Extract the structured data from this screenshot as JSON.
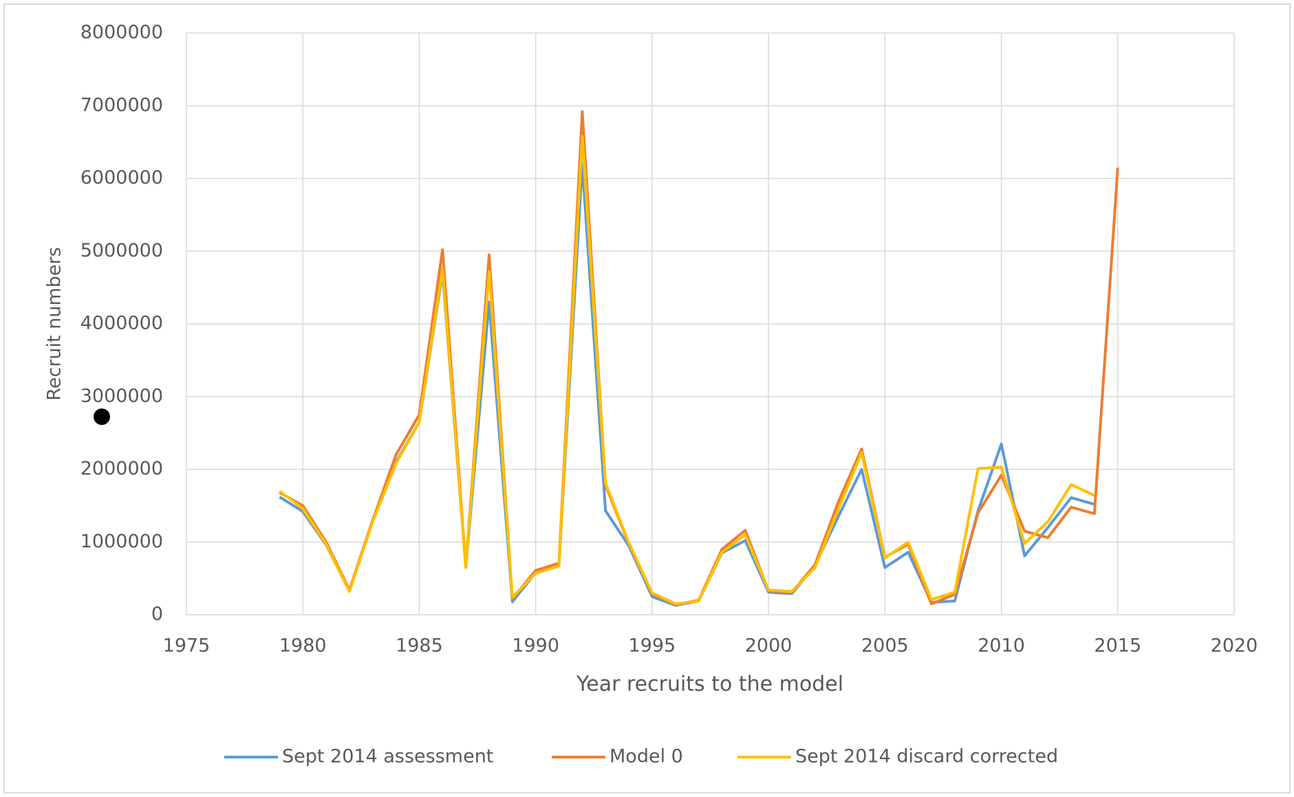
{
  "chart_data": {
    "type": "line",
    "x_label": "Year recruits to the model",
    "y_label": "Recruit numbers",
    "x": [
      1979,
      1980,
      1981,
      1982,
      1983,
      1984,
      1985,
      1986,
      1987,
      1988,
      1989,
      1990,
      1991,
      1992,
      1993,
      1994,
      1995,
      1996,
      1997,
      1998,
      1999,
      2000,
      2001,
      2002,
      2003,
      2004,
      2005,
      2006,
      2007,
      2008,
      2009,
      2010,
      2011,
      2012,
      2013,
      2014,
      2015
    ],
    "series": [
      {
        "name": "Sept 2014 assessment",
        "color": "#5b9bd5",
        "values": [
          1620000,
          1420000,
          960000,
          330000,
          1300000,
          2100000,
          2650000,
          4700000,
          650000,
          4300000,
          180000,
          580000,
          680000,
          6200000,
          1430000,
          950000,
          250000,
          130000,
          190000,
          850000,
          1020000,
          310000,
          290000,
          680000,
          1350000,
          2000000,
          650000,
          860000,
          170000,
          190000,
          1430000,
          2350000,
          810000,
          1200000,
          1610000,
          1520000,
          null
        ]
      },
      {
        "name": "Model 0",
        "color": "#ed7d31",
        "values": [
          1680000,
          1500000,
          1000000,
          340000,
          1300000,
          2200000,
          2750000,
          5020000,
          660000,
          4950000,
          220000,
          610000,
          710000,
          6920000,
          1780000,
          980000,
          290000,
          140000,
          200000,
          900000,
          1160000,
          330000,
          310000,
          690000,
          1550000,
          2280000,
          790000,
          970000,
          150000,
          280000,
          1400000,
          1920000,
          1150000,
          1060000,
          1480000,
          1390000,
          6150000
        ]
      },
      {
        "name": "Sept 2014 discard corrected",
        "color": "#ffc000",
        "values": [
          1700000,
          1460000,
          970000,
          320000,
          1280000,
          2080000,
          2650000,
          4750000,
          650000,
          4720000,
          240000,
          570000,
          670000,
          6580000,
          1810000,
          990000,
          300000,
          150000,
          190000,
          860000,
          1100000,
          340000,
          320000,
          650000,
          1450000,
          2230000,
          780000,
          1000000,
          210000,
          310000,
          2010000,
          2030000,
          980000,
          1280000,
          1790000,
          1640000,
          null
        ]
      }
    ],
    "xlim": [
      1975,
      2020
    ],
    "xticks": [
      1975,
      1980,
      1985,
      1990,
      1995,
      2000,
      2005,
      2010,
      2015,
      2020
    ],
    "ylim": [
      0,
      8000000
    ],
    "yticks": [
      0,
      1000000,
      2000000,
      3000000,
      4000000,
      5000000,
      6000000,
      7000000,
      8000000
    ],
    "grid": true,
    "legend": "bottom"
  }
}
